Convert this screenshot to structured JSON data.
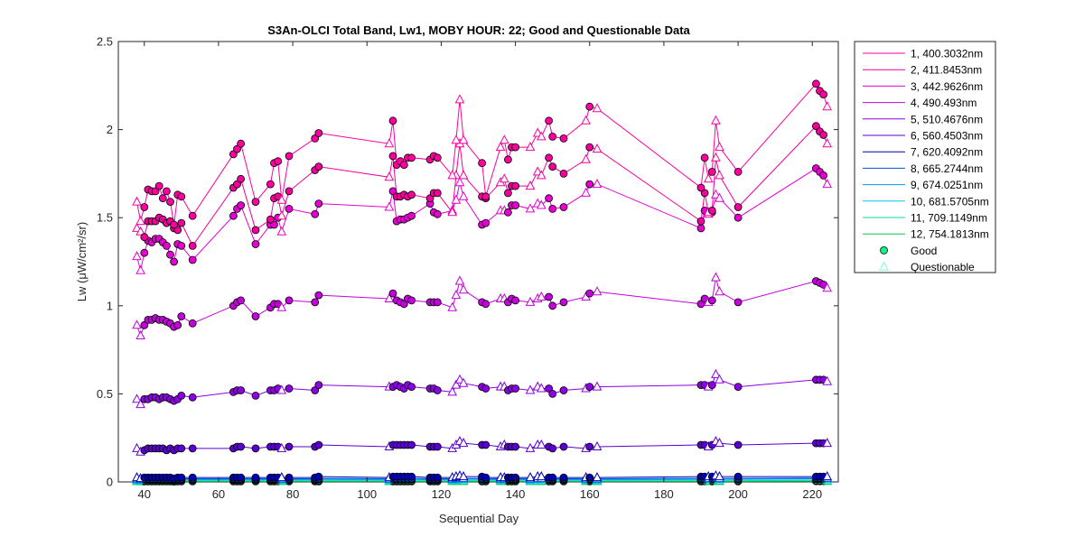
{
  "chart_data": {
    "type": "line",
    "title": "S3An-OLCI Total Band,  Lw1, MOBY HOUR: 22;  Good and Questionable Data",
    "xlabel": "Sequential Day",
    "ylabel": "Lw (μW/cm²/sr)",
    "xlim": [
      33,
      227
    ],
    "ylim": [
      0,
      2.5
    ],
    "xticks": [
      40,
      60,
      80,
      100,
      120,
      140,
      160,
      180,
      200,
      220
    ],
    "yticks": [
      0,
      0.5,
      1,
      1.5,
      2,
      2.5
    ],
    "ytick_labels": [
      "0",
      "0.5",
      "1",
      "1.5",
      "2",
      "2.5"
    ],
    "grid": false,
    "legend_position": "outside-right",
    "marker_legend": [
      {
        "label": "Good",
        "marker": "circle",
        "color": "#00ff80"
      },
      {
        "label": "Questionable",
        "marker": "triangle",
        "color": "#7fffd4"
      }
    ],
    "x": [
      38,
      39,
      40,
      41,
      42,
      43,
      44,
      45,
      46,
      47,
      48,
      49,
      50,
      53,
      64,
      65,
      66,
      70,
      74,
      75,
      76,
      77,
      79,
      86,
      87,
      106,
      107,
      108,
      109,
      110,
      111,
      112,
      117,
      118,
      119,
      123,
      124,
      125,
      126,
      131,
      132,
      136,
      137,
      138,
      139,
      140,
      144,
      146,
      147,
      149,
      150,
      153,
      159,
      160,
      162,
      190,
      191,
      192,
      193,
      194,
      195,
      200,
      221,
      222,
      223,
      224
    ],
    "quality": [
      "Q",
      "Q",
      "G",
      "G",
      "G",
      "G",
      "G",
      "G",
      "G",
      "G",
      "G",
      "G",
      "G",
      "G",
      "G",
      "G",
      "G",
      "G",
      "G",
      "G",
      "G",
      "Q",
      "G",
      "G",
      "G",
      "Q",
      "G",
      "G",
      "G",
      "G",
      "G",
      "G",
      "G",
      "G",
      "G",
      "Q",
      "Q",
      "Q",
      "Q",
      "G",
      "G",
      "Q",
      "Q",
      "G",
      "G",
      "G",
      "Q",
      "Q",
      "Q",
      "G",
      "G",
      "G",
      "Q",
      "G",
      "Q",
      "G",
      "G",
      "Q",
      "G",
      "Q",
      "Q",
      "G",
      "G",
      "G",
      "G",
      "Q"
    ],
    "series": [
      {
        "name": "1, 400.3032nm",
        "color": "#ff00a0",
        "values": [
          1.59,
          1.48,
          1.56,
          1.66,
          1.65,
          1.65,
          1.68,
          1.61,
          1.65,
          1.59,
          1.46,
          1.63,
          1.62,
          1.51,
          1.86,
          1.89,
          1.92,
          1.59,
          1.69,
          1.81,
          1.82,
          1.6,
          1.85,
          1.95,
          1.98,
          1.92,
          2.05,
          1.8,
          1.82,
          1.8,
          1.84,
          1.84,
          1.83,
          1.85,
          1.84,
          1.74,
          1.94,
          2.17,
          1.94,
          1.81,
          1.62,
          1.9,
          1.94,
          1.83,
          1.9,
          1.9,
          1.9,
          1.98,
          1.96,
          2.05,
          1.96,
          1.95,
          2.05,
          2.13,
          2.12,
          1.67,
          1.84,
          1.72,
          1.76,
          2.05,
          1.9,
          1.76,
          2.26,
          2.22,
          2.2,
          2.13
        ]
      },
      {
        "name": "2, 411.8453nm",
        "color": "#f2009a",
        "values": [
          1.44,
          1.42,
          1.39,
          1.48,
          1.48,
          1.48,
          1.5,
          1.49,
          1.47,
          1.48,
          1.44,
          1.43,
          1.47,
          1.34,
          1.67,
          1.69,
          1.72,
          1.43,
          1.49,
          1.61,
          1.62,
          1.51,
          1.65,
          1.77,
          1.79,
          1.73,
          1.85,
          1.62,
          1.62,
          1.63,
          1.62,
          1.63,
          1.61,
          1.64,
          1.64,
          1.53,
          1.74,
          1.92,
          1.74,
          1.62,
          1.61,
          1.7,
          1.72,
          1.64,
          1.68,
          1.68,
          1.68,
          1.76,
          1.74,
          1.84,
          1.79,
          1.75,
          1.83,
          1.9,
          1.89,
          1.48,
          1.64,
          1.53,
          1.54,
          1.84,
          1.74,
          1.56,
          2.02,
          1.99,
          1.97,
          1.92
        ]
      },
      {
        "name": "3, 442.9626nm",
        "color": "#e600d2",
        "values": [
          1.28,
          1.2,
          1.3,
          1.37,
          1.36,
          1.38,
          1.38,
          1.36,
          1.34,
          1.29,
          1.25,
          1.35,
          1.34,
          1.26,
          1.51,
          1.55,
          1.57,
          1.35,
          1.46,
          1.46,
          1.5,
          1.42,
          1.55,
          1.52,
          1.58,
          1.56,
          1.65,
          1.48,
          1.49,
          1.49,
          1.5,
          1.51,
          1.58,
          1.53,
          1.52,
          1.54,
          1.6,
          1.7,
          1.62,
          1.46,
          1.47,
          1.54,
          1.54,
          1.53,
          1.57,
          1.57,
          1.55,
          1.58,
          1.57,
          1.61,
          1.55,
          1.56,
          1.64,
          1.69,
          1.69,
          1.44,
          1.54,
          1.52,
          1.53,
          1.63,
          1.61,
          1.5,
          1.78,
          1.76,
          1.74,
          1.69
        ]
      },
      {
        "name": "4,  490.493nm",
        "color": "#c400dc",
        "values": [
          0.89,
          0.83,
          0.89,
          0.92,
          0.92,
          0.93,
          0.92,
          0.92,
          0.91,
          0.9,
          0.88,
          0.89,
          0.94,
          0.9,
          1.0,
          1.02,
          1.03,
          0.94,
          0.99,
          1.01,
          1.01,
          0.99,
          1.03,
          1.02,
          1.06,
          1.04,
          1.07,
          1.03,
          1.02,
          1.01,
          1.04,
          1.03,
          1.02,
          1.02,
          1.02,
          0.99,
          1.06,
          1.14,
          1.09,
          1.02,
          1.01,
          1.04,
          1.04,
          1.02,
          1.04,
          1.03,
          1.02,
          1.04,
          1.05,
          1.05,
          1.0,
          1.02,
          1.05,
          1.07,
          1.08,
          1.01,
          1.04,
          1.02,
          1.03,
          1.16,
          1.08,
          1.02,
          1.14,
          1.13,
          1.12,
          1.1
        ]
      },
      {
        "name": "5, 510.4676nm",
        "color": "#8c00e6",
        "values": [
          0.47,
          0.44,
          0.47,
          0.47,
          0.48,
          0.48,
          0.47,
          0.48,
          0.48,
          0.47,
          0.46,
          0.47,
          0.49,
          0.48,
          0.51,
          0.52,
          0.52,
          0.49,
          0.52,
          0.52,
          0.53,
          0.52,
          0.53,
          0.52,
          0.55,
          0.54,
          0.54,
          0.55,
          0.54,
          0.53,
          0.55,
          0.54,
          0.53,
          0.53,
          0.52,
          0.51,
          0.55,
          0.58,
          0.56,
          0.54,
          0.53,
          0.54,
          0.54,
          0.52,
          0.53,
          0.53,
          0.52,
          0.54,
          0.53,
          0.53,
          0.5,
          0.52,
          0.53,
          0.54,
          0.54,
          0.55,
          0.55,
          0.54,
          0.55,
          0.61,
          0.58,
          0.54,
          0.58,
          0.58,
          0.58,
          0.57
        ]
      },
      {
        "name": "6, 560.4503nm",
        "color": "#5a00d2",
        "values": [
          0.19,
          0.17,
          0.18,
          0.19,
          0.19,
          0.19,
          0.19,
          0.19,
          0.18,
          0.19,
          0.18,
          0.19,
          0.19,
          0.19,
          0.19,
          0.2,
          0.2,
          0.19,
          0.2,
          0.2,
          0.2,
          0.19,
          0.2,
          0.2,
          0.21,
          0.2,
          0.21,
          0.21,
          0.21,
          0.21,
          0.21,
          0.21,
          0.2,
          0.2,
          0.2,
          0.19,
          0.21,
          0.23,
          0.22,
          0.21,
          0.21,
          0.2,
          0.21,
          0.2,
          0.2,
          0.2,
          0.19,
          0.21,
          0.21,
          0.2,
          0.19,
          0.2,
          0.19,
          0.2,
          0.2,
          0.21,
          0.21,
          0.2,
          0.21,
          0.23,
          0.22,
          0.21,
          0.22,
          0.22,
          0.22,
          0.22
        ]
      },
      {
        "name": "7, 620.4092nm",
        "color": "#0000b4",
        "values": [
          0.025,
          0.02,
          0.025,
          0.025,
          0.025,
          0.025,
          0.025,
          0.025,
          0.025,
          0.025,
          0.02,
          0.025,
          0.025,
          0.025,
          0.025,
          0.025,
          0.025,
          0.025,
          0.025,
          0.025,
          0.025,
          0.025,
          0.025,
          0.025,
          0.03,
          0.025,
          0.03,
          0.03,
          0.03,
          0.03,
          0.03,
          0.03,
          0.025,
          0.025,
          0.025,
          0.025,
          0.03,
          0.035,
          0.03,
          0.03,
          0.025,
          0.025,
          0.025,
          0.025,
          0.025,
          0.025,
          0.025,
          0.03,
          0.03,
          0.025,
          0.025,
          0.025,
          0.025,
          0.025,
          0.025,
          0.03,
          0.03,
          0.03,
          0.03,
          0.035,
          0.03,
          0.03,
          0.03,
          0.03,
          0.03,
          0.03
        ]
      },
      {
        "name": "8, 665.2744nm",
        "color": "#0050dc",
        "values": [
          0.018,
          0.015,
          0.018,
          0.018,
          0.018,
          0.018,
          0.018,
          0.018,
          0.018,
          0.018,
          0.015,
          0.018,
          0.018,
          0.018,
          0.018,
          0.018,
          0.018,
          0.018,
          0.018,
          0.018,
          0.018,
          0.018,
          0.018,
          0.018,
          0.02,
          0.018,
          0.02,
          0.02,
          0.02,
          0.02,
          0.02,
          0.02,
          0.018,
          0.018,
          0.018,
          0.018,
          0.02,
          0.025,
          0.02,
          0.02,
          0.018,
          0.018,
          0.018,
          0.018,
          0.018,
          0.018,
          0.018,
          0.02,
          0.02,
          0.018,
          0.018,
          0.018,
          0.018,
          0.018,
          0.018,
          0.02,
          0.02,
          0.02,
          0.02,
          0.025,
          0.02,
          0.02,
          0.022,
          0.022,
          0.022,
          0.022
        ]
      },
      {
        "name": "9, 674.0251nm",
        "color": "#0096e6",
        "values": [
          0.015,
          0.012,
          0.015,
          0.015,
          0.015,
          0.015,
          0.015,
          0.015,
          0.015,
          0.015,
          0.012,
          0.015,
          0.015,
          0.015,
          0.015,
          0.015,
          0.015,
          0.015,
          0.015,
          0.015,
          0.015,
          0.015,
          0.015,
          0.015,
          0.017,
          0.015,
          0.017,
          0.017,
          0.017,
          0.017,
          0.017,
          0.017,
          0.015,
          0.015,
          0.015,
          0.015,
          0.017,
          0.022,
          0.017,
          0.017,
          0.015,
          0.015,
          0.015,
          0.015,
          0.015,
          0.015,
          0.015,
          0.017,
          0.017,
          0.015,
          0.015,
          0.015,
          0.015,
          0.015,
          0.015,
          0.017,
          0.017,
          0.017,
          0.017,
          0.022,
          0.017,
          0.017,
          0.019,
          0.019,
          0.019,
          0.019
        ]
      },
      {
        "name": "10, 681.5705nm",
        "color": "#00c8e6",
        "values": [
          0.012,
          0.01,
          0.012,
          0.012,
          0.012,
          0.012,
          0.012,
          0.012,
          0.012,
          0.012,
          0.01,
          0.012,
          0.012,
          0.012,
          0.012,
          0.012,
          0.012,
          0.012,
          0.012,
          0.012,
          0.012,
          0.012,
          0.012,
          0.012,
          0.014,
          0.012,
          0.014,
          0.014,
          0.014,
          0.014,
          0.014,
          0.014,
          0.012,
          0.012,
          0.012,
          0.012,
          0.014,
          0.019,
          0.014,
          0.014,
          0.012,
          0.012,
          0.012,
          0.012,
          0.012,
          0.012,
          0.012,
          0.014,
          0.014,
          0.012,
          0.012,
          0.012,
          0.012,
          0.012,
          0.012,
          0.014,
          0.014,
          0.014,
          0.014,
          0.019,
          0.014,
          0.014,
          0.016,
          0.016,
          0.016,
          0.016
        ]
      },
      {
        "name": "11, 709.1149nm",
        "color": "#00dca0",
        "values": [
          0.006,
          0.005,
          0.006,
          0.006,
          0.006,
          0.006,
          0.006,
          0.006,
          0.006,
          0.006,
          0.005,
          0.006,
          0.006,
          0.006,
          0.006,
          0.006,
          0.006,
          0.006,
          0.006,
          0.006,
          0.006,
          0.006,
          0.006,
          0.006,
          0.007,
          0.006,
          0.007,
          0.007,
          0.007,
          0.007,
          0.007,
          0.007,
          0.006,
          0.006,
          0.006,
          0.006,
          0.007,
          0.01,
          0.007,
          0.007,
          0.006,
          0.006,
          0.006,
          0.006,
          0.006,
          0.006,
          0.006,
          0.007,
          0.007,
          0.006,
          0.006,
          0.006,
          0.006,
          0.006,
          0.006,
          0.007,
          0.007,
          0.007,
          0.007,
          0.01,
          0.007,
          0.007,
          0.008,
          0.008,
          0.008,
          0.008
        ]
      },
      {
        "name": "12, 754.1813nm",
        "color": "#00c850",
        "values": [
          0.003,
          0.002,
          0.003,
          0.003,
          0.003,
          0.003,
          0.003,
          0.003,
          0.003,
          0.003,
          0.002,
          0.003,
          0.003,
          0.003,
          0.003,
          0.003,
          0.003,
          0.003,
          0.003,
          0.003,
          0.003,
          0.003,
          0.003,
          0.003,
          0.003,
          0.003,
          0.003,
          0.003,
          0.003,
          0.003,
          0.003,
          0.003,
          0.003,
          0.003,
          0.003,
          0.003,
          0.003,
          0.005,
          0.003,
          0.003,
          0.003,
          0.003,
          0.003,
          0.003,
          0.003,
          0.003,
          0.003,
          0.003,
          0.003,
          0.003,
          0.003,
          0.003,
          0.003,
          0.003,
          0.003,
          0.003,
          0.003,
          0.003,
          0.003,
          0.005,
          0.003,
          0.003,
          0.004,
          0.004,
          0.004,
          0.004
        ]
      }
    ]
  }
}
